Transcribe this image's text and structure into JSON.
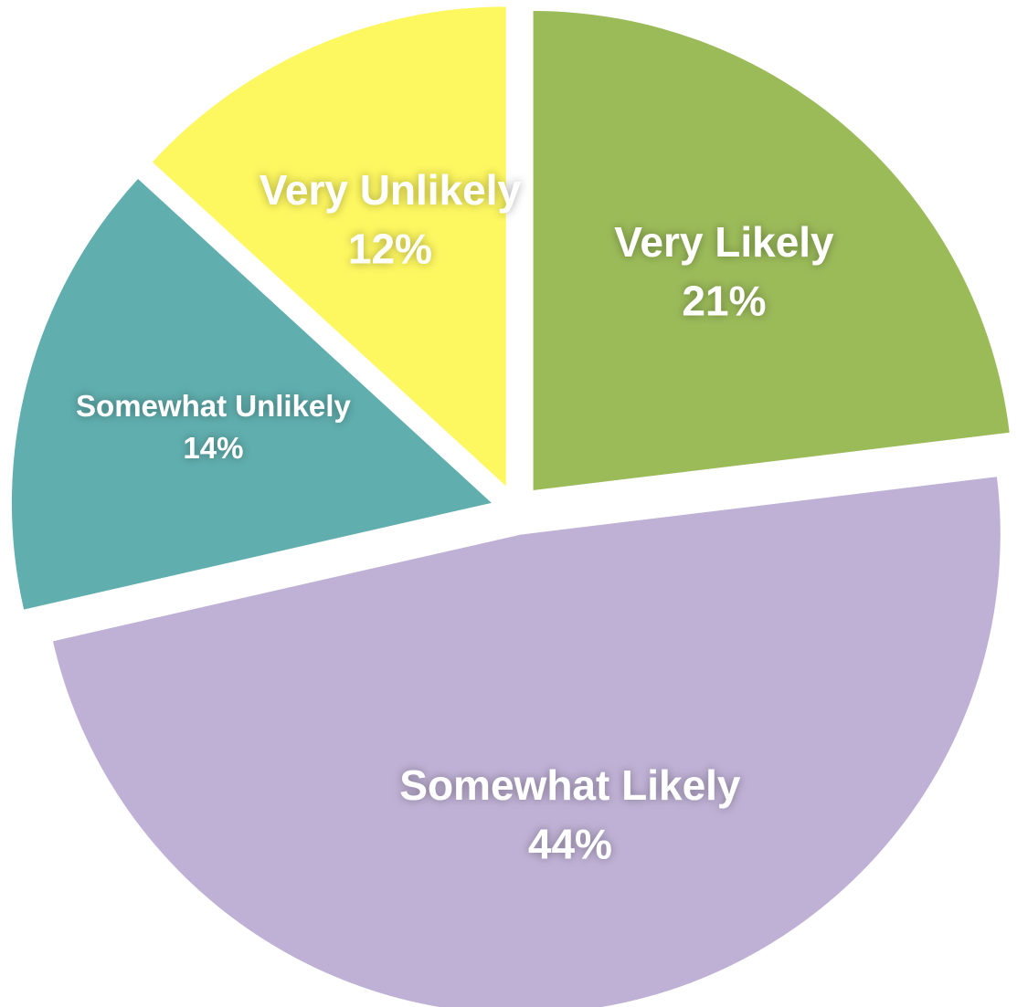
{
  "chart_data": {
    "type": "pie",
    "categories": [
      "Very Likely",
      "Somewhat Likely",
      "Somewhat Unlikely",
      "Very Unlikely"
    ],
    "values": [
      21,
      44,
      14,
      12
    ],
    "value_labels": [
      "21%",
      "44%",
      "14%",
      "12%"
    ],
    "colors": [
      "#9bbb59",
      "#bfb1d5",
      "#60aeae",
      "#fdf760"
    ]
  }
}
